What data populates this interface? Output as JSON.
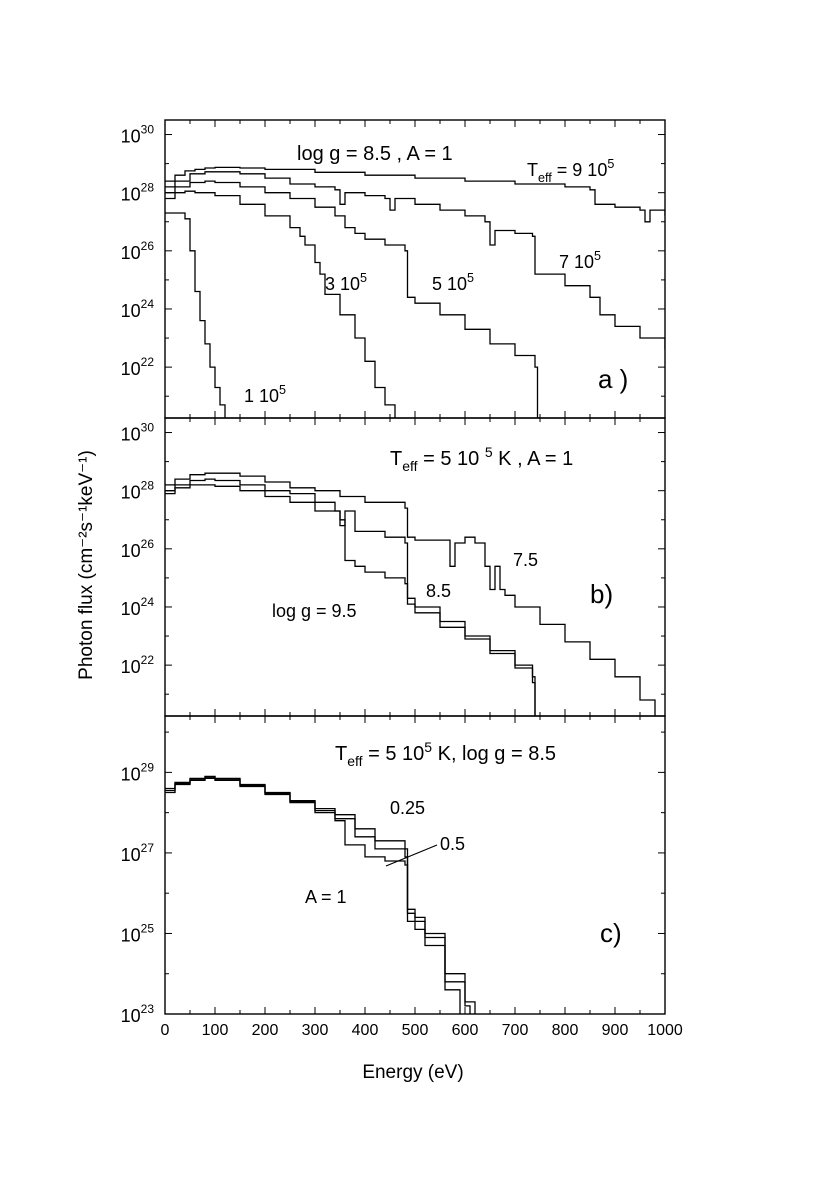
{
  "figure": {
    "ylabel": "Photon flux (cm⁻²s⁻¹keV⁻¹)",
    "xlabel": "Energy (eV)",
    "xlim": [
      0,
      1000
    ],
    "xticks": [
      0,
      100,
      200,
      300,
      400,
      500,
      600,
      700,
      800,
      900,
      1000
    ],
    "line_color": "#000000",
    "background": "#ffffff"
  },
  "chart_data": [
    {
      "type": "line",
      "panel": "a",
      "panel_label": "a )",
      "heading": "log g = 8.5 , A = 1",
      "scale": "log",
      "xlim": [
        0,
        1000
      ],
      "ylim": [
        20.25,
        30.5
      ],
      "yticks": [
        22,
        24,
        26,
        28,
        30
      ],
      "series": [
        {
          "name": "T eff = 9 10^5",
          "points": [
            [
              0,
              28.4
            ],
            [
              20,
              28.6
            ],
            [
              40,
              28.75
            ],
            [
              60,
              28.8
            ],
            [
              80,
              28.85
            ],
            [
              100,
              28.87
            ],
            [
              150,
              28.85
            ],
            [
              200,
              28.8
            ],
            [
              300,
              28.7
            ],
            [
              400,
              28.6
            ],
            [
              500,
              28.5
            ],
            [
              600,
              28.4
            ],
            [
              700,
              28.3
            ],
            [
              800,
              28.2
            ],
            [
              850,
              28.1
            ],
            [
              860,
              27.6
            ],
            [
              900,
              27.5
            ],
            [
              950,
              27.4
            ],
            [
              960,
              27.0
            ],
            [
              970,
              27.4
            ],
            [
              1000,
              27.2
            ]
          ]
        },
        {
          "name": "7 10^5",
          "points": [
            [
              0,
              28.2
            ],
            [
              20,
              28.4
            ],
            [
              50,
              28.65
            ],
            [
              80,
              28.72
            ],
            [
              100,
              28.72
            ],
            [
              150,
              28.65
            ],
            [
              200,
              28.5
            ],
            [
              250,
              28.3
            ],
            [
              300,
              28.2
            ],
            [
              340,
              28.1
            ],
            [
              350,
              27.6
            ],
            [
              360,
              28.0
            ],
            [
              400,
              27.9
            ],
            [
              440,
              27.8
            ],
            [
              450,
              27.4
            ],
            [
              460,
              27.8
            ],
            [
              500,
              27.6
            ],
            [
              550,
              27.4
            ],
            [
              600,
              27.2
            ],
            [
              640,
              27.0
            ],
            [
              650,
              26.2
            ],
            [
              660,
              26.7
            ],
            [
              700,
              26.6
            ],
            [
              735,
              26.5
            ],
            [
              740,
              25.2
            ],
            [
              800,
              24.8
            ],
            [
              850,
              24.4
            ],
            [
              870,
              23.8
            ],
            [
              900,
              23.4
            ],
            [
              950,
              23.0
            ],
            [
              1000,
              22.6
            ]
          ]
        },
        {
          "name": "5 10^5",
          "points": [
            [
              0,
              28.0
            ],
            [
              20,
              28.2
            ],
            [
              50,
              28.35
            ],
            [
              80,
              28.4
            ],
            [
              100,
              28.35
            ],
            [
              150,
              28.2
            ],
            [
              200,
              28.0
            ],
            [
              250,
              27.8
            ],
            [
              300,
              27.5
            ],
            [
              340,
              27.2
            ],
            [
              360,
              26.8
            ],
            [
              380,
              26.6
            ],
            [
              400,
              26.4
            ],
            [
              440,
              26.2
            ],
            [
              480,
              26.0
            ],
            [
              485,
              24.4
            ],
            [
              500,
              24.2
            ],
            [
              550,
              23.8
            ],
            [
              600,
              23.3
            ],
            [
              650,
              22.8
            ],
            [
              700,
              22.4
            ],
            [
              740,
              22.0
            ],
            [
              745,
              20.25
            ]
          ]
        },
        {
          "name": "3 10^5",
          "points": [
            [
              0,
              27.8
            ],
            [
              20,
              28.0
            ],
            [
              40,
              28.05
            ],
            [
              60,
              28.0
            ],
            [
              100,
              27.9
            ],
            [
              150,
              27.6
            ],
            [
              200,
              27.2
            ],
            [
              250,
              26.8
            ],
            [
              270,
              26.5
            ],
            [
              280,
              26.2
            ],
            [
              300,
              25.6
            ],
            [
              310,
              25.2
            ],
            [
              320,
              24.5
            ],
            [
              350,
              23.8
            ],
            [
              380,
              23.0
            ],
            [
              400,
              22.2
            ],
            [
              420,
              21.3
            ],
            [
              440,
              20.7
            ],
            [
              460,
              20.25
            ]
          ]
        },
        {
          "name": "1 10^5",
          "points": [
            [
              0,
              27.3
            ],
            [
              20,
              27.3
            ],
            [
              40,
              27.1
            ],
            [
              50,
              26.0
            ],
            [
              60,
              24.6
            ],
            [
              70,
              23.6
            ],
            [
              80,
              22.8
            ],
            [
              90,
              22.0
            ],
            [
              100,
              21.3
            ],
            [
              110,
              20.7
            ],
            [
              120,
              20.25
            ]
          ]
        }
      ],
      "labels": [
        {
          "text": "T",
          "sub": "eff",
          "suffix": " = 9 10",
          "sup": "5"
        },
        {
          "text": "7 10",
          "sup": "5"
        },
        {
          "text": "5 10",
          "sup": "5"
        },
        {
          "text": "3 10",
          "sup": "5"
        },
        {
          "text": "1 10",
          "sup": "5"
        }
      ]
    },
    {
      "type": "line",
      "panel": "b",
      "panel_label": "b)",
      "heading": {
        "text": "T",
        "sub": "eff",
        "suffix": " = 5 10 ",
        "sup": "5",
        "tail": " K ,  A = 1"
      },
      "scale": "log",
      "xlim": [
        0,
        1000
      ],
      "ylim": [
        20.25,
        30.5
      ],
      "yticks": [
        22,
        24,
        26,
        28,
        30
      ],
      "series": [
        {
          "name": "7.5",
          "points": [
            [
              0,
              28.2
            ],
            [
              20,
              28.4
            ],
            [
              50,
              28.55
            ],
            [
              80,
              28.6
            ],
            [
              100,
              28.6
            ],
            [
              150,
              28.5
            ],
            [
              200,
              28.3
            ],
            [
              250,
              28.1
            ],
            [
              300,
              28.0
            ],
            [
              350,
              27.8
            ],
            [
              400,
              27.6
            ],
            [
              480,
              27.4
            ],
            [
              485,
              26.4
            ],
            [
              500,
              26.3
            ],
            [
              550,
              26.3
            ],
            [
              570,
              25.4
            ],
            [
              580,
              26.2
            ],
            [
              600,
              26.4
            ],
            [
              620,
              26.2
            ],
            [
              640,
              25.4
            ],
            [
              650,
              24.6
            ],
            [
              660,
              25.4
            ],
            [
              670,
              24.6
            ],
            [
              680,
              24.4
            ],
            [
              700,
              24.0
            ],
            [
              750,
              23.4
            ],
            [
              800,
              22.8
            ],
            [
              850,
              22.2
            ],
            [
              900,
              21.6
            ],
            [
              950,
              20.8
            ],
            [
              980,
              20.25
            ]
          ]
        },
        {
          "name": "8.5",
          "points": [
            [
              0,
              28.0
            ],
            [
              20,
              28.2
            ],
            [
              50,
              28.35
            ],
            [
              80,
              28.4
            ],
            [
              100,
              28.35
            ],
            [
              150,
              28.2
            ],
            [
              200,
              28.0
            ],
            [
              250,
              27.9
            ],
            [
              300,
              27.6
            ],
            [
              340,
              27.3
            ],
            [
              350,
              26.8
            ],
            [
              360,
              27.3
            ],
            [
              380,
              26.6
            ],
            [
              400,
              26.6
            ],
            [
              440,
              26.4
            ],
            [
              480,
              26.2
            ],
            [
              485,
              24.3
            ],
            [
              500,
              24.0
            ],
            [
              550,
              23.5
            ],
            [
              600,
              23.0
            ],
            [
              650,
              22.5
            ],
            [
              700,
              22.0
            ],
            [
              735,
              21.6
            ],
            [
              740,
              20.25
            ]
          ]
        },
        {
          "name": "log g = 9.5",
          "points": [
            [
              0,
              27.9
            ],
            [
              20,
              28.1
            ],
            [
              50,
              28.2
            ],
            [
              80,
              28.2
            ],
            [
              100,
              28.15
            ],
            [
              150,
              28.0
            ],
            [
              200,
              27.8
            ],
            [
              250,
              27.6
            ],
            [
              300,
              27.3
            ],
            [
              350,
              27.0
            ],
            [
              360,
              25.6
            ],
            [
              380,
              25.4
            ],
            [
              400,
              25.2
            ],
            [
              440,
              25.0
            ],
            [
              480,
              24.8
            ],
            [
              485,
              24.1
            ],
            [
              500,
              23.8
            ],
            [
              550,
              23.3
            ],
            [
              600,
              22.9
            ],
            [
              650,
              22.4
            ],
            [
              700,
              21.9
            ],
            [
              735,
              21.4
            ],
            [
              740,
              20.25
            ]
          ]
        }
      ],
      "labels": [
        {
          "text": "7.5"
        },
        {
          "text": "8.5"
        },
        {
          "text": "log g = 9.5"
        }
      ]
    },
    {
      "type": "line",
      "panel": "c",
      "panel_label": "c)",
      "heading": {
        "text": "T",
        "sub": "eff",
        "suffix": " = 5 10",
        "sup": "5",
        "tail": " K, log g = 8.5"
      },
      "scale": "log",
      "xlim": [
        0,
        1000
      ],
      "ylim": [
        23,
        30.4
      ],
      "yticks": [
        23,
        25,
        27,
        29
      ],
      "series": [
        {
          "name": "0.25",
          "points": [
            [
              0,
              28.6
            ],
            [
              20,
              28.75
            ],
            [
              50,
              28.85
            ],
            [
              80,
              28.9
            ],
            [
              100,
              28.85
            ],
            [
              150,
              28.7
            ],
            [
              200,
              28.5
            ],
            [
              250,
              28.3
            ],
            [
              300,
              28.1
            ],
            [
              340,
              27.95
            ],
            [
              380,
              27.6
            ],
            [
              420,
              27.3
            ],
            [
              480,
              27.1
            ],
            [
              485,
              25.6
            ],
            [
              500,
              25.4
            ],
            [
              520,
              25.0
            ],
            [
              560,
              24.0
            ],
            [
              600,
              23.3
            ],
            [
              620,
              23.0
            ]
          ]
        },
        {
          "name": "0.5",
          "points": [
            [
              0,
              28.55
            ],
            [
              20,
              28.72
            ],
            [
              50,
              28.83
            ],
            [
              80,
              28.88
            ],
            [
              100,
              28.83
            ],
            [
              150,
              28.68
            ],
            [
              200,
              28.48
            ],
            [
              250,
              28.28
            ],
            [
              300,
              28.05
            ],
            [
              340,
              27.85
            ],
            [
              380,
              27.4
            ],
            [
              420,
              27.1
            ],
            [
              480,
              26.9
            ],
            [
              485,
              25.5
            ],
            [
              500,
              25.3
            ],
            [
              520,
              24.9
            ],
            [
              560,
              23.8
            ],
            [
              600,
              23.2
            ],
            [
              610,
              23.0
            ]
          ]
        },
        {
          "name": "A = 1",
          "points": [
            [
              0,
              28.5
            ],
            [
              20,
              28.7
            ],
            [
              50,
              28.8
            ],
            [
              80,
              28.85
            ],
            [
              100,
              28.8
            ],
            [
              150,
              28.65
            ],
            [
              200,
              28.45
            ],
            [
              250,
              28.25
            ],
            [
              300,
              28.0
            ],
            [
              340,
              27.8
            ],
            [
              360,
              27.2
            ],
            [
              380,
              27.2
            ],
            [
              400,
              26.9
            ],
            [
              440,
              26.8
            ],
            [
              480,
              26.7
            ],
            [
              485,
              25.3
            ],
            [
              500,
              25.1
            ],
            [
              520,
              24.7
            ],
            [
              560,
              23.6
            ],
            [
              590,
              23.0
            ]
          ]
        }
      ],
      "labels": [
        {
          "text": "0.25"
        },
        {
          "text": "0.5"
        },
        {
          "text": "A = 1"
        }
      ]
    }
  ]
}
